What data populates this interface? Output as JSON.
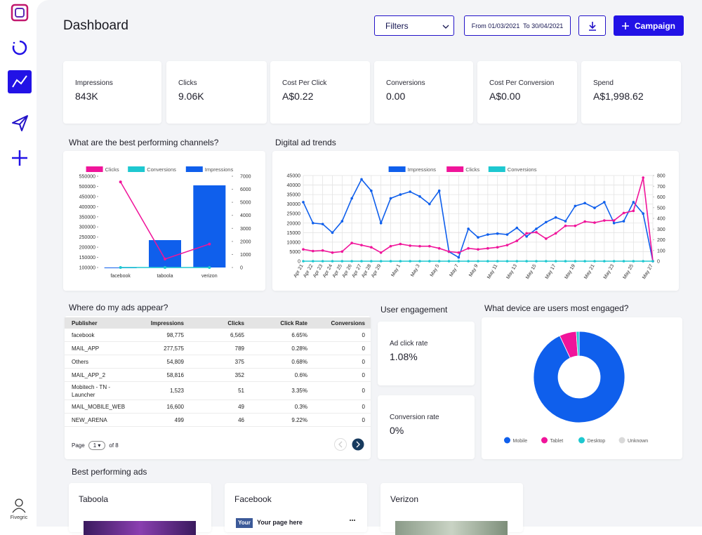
{
  "sidebar": {
    "user": "Fivegric"
  },
  "header": {
    "title": "Dashboard",
    "filters": "Filters",
    "date_range": "From 01/03/2021  To 30/04/2021",
    "campaign": "Campaign"
  },
  "kpis": [
    {
      "label": "Impressions",
      "value": "843K"
    },
    {
      "label": "Clicks",
      "value": "9.06K"
    },
    {
      "label": "Cost Per Click",
      "value": "A$0.22"
    },
    {
      "label": "Conversions",
      "value": "0.00"
    },
    {
      "label": "Cost Per Conversion",
      "value": "A$0.00"
    },
    {
      "label": "Spend",
      "value": "A$1,998.62"
    }
  ],
  "sections": {
    "channels": "What are the best performing channels?",
    "trends": "Digital ad trends",
    "placements": "Where do my ads appear?",
    "engagement": "User engagement",
    "devices": "What device are users most engaged?",
    "ads": "Best performing ads"
  },
  "table": {
    "columns": [
      "Publisher",
      "Impressions",
      "Clicks",
      "Click Rate",
      "Conversions"
    ],
    "rows": [
      [
        "facebook",
        "98,775",
        "6,565",
        "6.65%",
        "0"
      ],
      [
        "MAIL_APP",
        "277,575",
        "789",
        "0.28%",
        "0"
      ],
      [
        "Others",
        "54,809",
        "375",
        "0.68%",
        "0"
      ],
      [
        "MAIL_APP_2",
        "58,816",
        "352",
        "0.6%",
        "0"
      ],
      [
        "Mobitech - TN - Launcher",
        "1,523",
        "51",
        "3.35%",
        "0"
      ],
      [
        "MAIL_MOBILE_WEB",
        "16,600",
        "49",
        "0.3%",
        "0"
      ],
      [
        "NEW_ARENA",
        "499",
        "46",
        "9.22%",
        "0"
      ]
    ],
    "pagination": {
      "label": "Page",
      "page": "1",
      "of": "of 8"
    }
  },
  "engagement": [
    {
      "label": "Ad click rate",
      "value": "1.08%"
    },
    {
      "label": "Conversion rate",
      "value": "0%"
    }
  ],
  "ads": [
    {
      "title": "Taboola"
    },
    {
      "title": "Facebook",
      "preview": "Your page here",
      "logo": "Your"
    },
    {
      "title": "Verizon"
    }
  ],
  "chart_data": [
    {
      "type": "bar",
      "categories": [
        "facebook",
        "taboola",
        "verizon"
      ],
      "series": [
        {
          "name": "Clicks",
          "type": "line",
          "axis": "y2",
          "color": "#f0149a",
          "values": [
            6565,
            650,
            1800
          ]
        },
        {
          "name": "Conversions",
          "type": "line",
          "axis": "y2",
          "color": "#1ec8d0",
          "values": [
            0,
            0,
            0
          ]
        },
        {
          "name": "Impressions",
          "type": "bar",
          "color": "#0f5fec",
          "values": [
            98775,
            235000,
            505000
          ]
        }
      ],
      "ylim": [
        100000,
        550000
      ],
      "yticks": [
        100000,
        150000,
        200000,
        250000,
        300000,
        350000,
        400000,
        450000,
        500000,
        550000
      ],
      "y2lim": [
        0,
        7000
      ],
      "y2ticks": [
        0,
        1000,
        2000,
        3000,
        4000,
        5000,
        6000,
        7000
      ],
      "legend": "top"
    },
    {
      "type": "line",
      "categories": [
        "Apr 21",
        "Apr 22",
        "Apr 23",
        "Apr 24",
        "Apr 25",
        "Apr 26",
        "Apr 27",
        "Apr 28",
        "Apr 29",
        null,
        "May 1",
        null,
        "May 3",
        null,
        "May 5",
        null,
        "May 7",
        null,
        "May 9",
        null,
        "May 11",
        null,
        "May 13",
        null,
        "May 15",
        null,
        "May 17",
        null,
        "May 19",
        null,
        "May 21",
        null,
        "May 23",
        null,
        "May 25",
        null,
        "May 27"
      ],
      "series": [
        {
          "name": "Impressions",
          "color": "#0f5fec",
          "values": [
            31000,
            20000,
            19500,
            15000,
            21000,
            33000,
            43000,
            37000,
            20000,
            33000,
            35000,
            36500,
            34000,
            30000,
            37000,
            5000,
            2000,
            17000,
            12500,
            14000,
            14500,
            14000,
            17500,
            13000,
            17000,
            20500,
            23000,
            21000,
            29000,
            30500,
            28000,
            31000,
            20000,
            21000,
            31000,
            25000,
            0
          ]
        },
        {
          "name": "Clicks",
          "axis": "y2",
          "color": "#f0149a",
          "values": [
            110,
            95,
            100,
            80,
            90,
            170,
            150,
            130,
            80,
            140,
            160,
            145,
            140,
            140,
            120,
            90,
            80,
            120,
            110,
            120,
            130,
            150,
            190,
            260,
            270,
            210,
            260,
            330,
            330,
            370,
            360,
            380,
            380,
            450,
            470,
            780,
            0
          ]
        },
        {
          "name": "Conversions",
          "axis": "y2",
          "color": "#1ec8d0",
          "values": [
            0,
            0,
            0,
            0,
            0,
            0,
            0,
            0,
            0,
            0,
            0,
            0,
            0,
            0,
            0,
            0,
            0,
            0,
            0,
            0,
            0,
            0,
            0,
            0,
            0,
            0,
            0,
            0,
            0,
            0,
            0,
            0,
            0,
            0,
            0,
            0,
            0
          ]
        }
      ],
      "ylim": [
        0,
        45000
      ],
      "yticks": [
        0,
        5000,
        10000,
        15000,
        20000,
        25000,
        30000,
        35000,
        40000,
        45000
      ],
      "y2lim": [
        0,
        800
      ],
      "y2ticks": [
        0,
        100,
        200,
        300,
        400,
        500,
        600,
        700,
        800
      ],
      "grid": true,
      "legend": "top"
    },
    {
      "type": "pie",
      "donut": true,
      "categories": [
        "Mobile",
        "Tablet",
        "Desktop",
        "Unknown"
      ],
      "values": [
        93,
        6,
        1,
        0
      ],
      "colors": [
        "#0f5fec",
        "#f0149a",
        "#1ec8d0",
        "#d9d9d9"
      ],
      "legend": "bottom"
    }
  ]
}
